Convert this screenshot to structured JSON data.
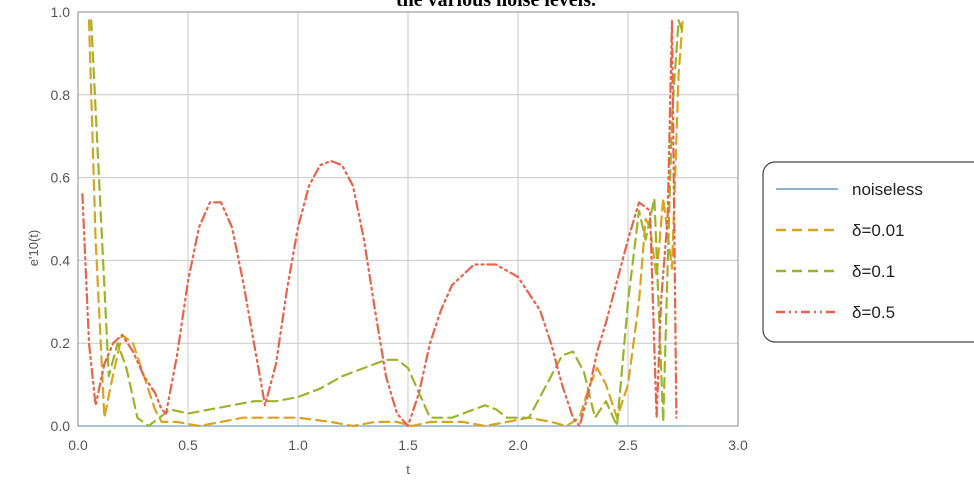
{
  "chart_data": {
    "type": "line",
    "title": "the various noise levels.",
    "xlabel": "t",
    "ylabel": "e'10(t)",
    "xlim": [
      0.0,
      3.0
    ],
    "ylim": [
      0.0,
      1.0
    ],
    "xticks": [
      "0.0",
      "0.5",
      "1.0",
      "1.5",
      "2.0",
      "2.5",
      "3.0"
    ],
    "yticks": [
      "0.0",
      "0.2",
      "0.4",
      "0.6",
      "0.8",
      "1.0"
    ],
    "grid": true,
    "legend_position": "right",
    "series": [
      {
        "name": "noiseless",
        "color": "#8fb0c8",
        "dash": "solid",
        "x": [
          0.0,
          2.75
        ],
        "y": [
          0.0,
          0.0
        ]
      },
      {
        "name": "δ=0.01",
        "color": "#d9a520",
        "dash": "dashed",
        "x": [
          0.05,
          0.08,
          0.12,
          0.15,
          0.2,
          0.25,
          0.3,
          0.35,
          0.38,
          0.45,
          0.55,
          0.65,
          0.75,
          0.85,
          1.0,
          1.15,
          1.25,
          1.35,
          1.45,
          1.52,
          1.6,
          1.75,
          1.85,
          1.95,
          2.05,
          2.15,
          2.22,
          2.28,
          2.32,
          2.36,
          2.4,
          2.45,
          2.5,
          2.55,
          2.58,
          2.6,
          2.63,
          2.66,
          2.7,
          2.73,
          2.75
        ],
        "y": [
          0.98,
          0.45,
          0.02,
          0.1,
          0.22,
          0.2,
          0.12,
          0.04,
          0.01,
          0.01,
          0.0,
          0.01,
          0.02,
          0.02,
          0.02,
          0.01,
          0.0,
          0.01,
          0.01,
          0.0,
          0.01,
          0.01,
          0.0,
          0.01,
          0.02,
          0.01,
          0.0,
          0.02,
          0.09,
          0.14,
          0.1,
          0.02,
          0.1,
          0.3,
          0.5,
          0.48,
          0.36,
          0.55,
          0.38,
          0.85,
          0.99
        ]
      },
      {
        "name": "δ=0.1",
        "color": "#9ab52a",
        "dash": "dashed",
        "x": [
          0.06,
          0.1,
          0.14,
          0.18,
          0.22,
          0.27,
          0.32,
          0.37,
          0.42,
          0.5,
          0.6,
          0.7,
          0.8,
          0.9,
          1.0,
          1.1,
          1.2,
          1.3,
          1.4,
          1.45,
          1.5,
          1.55,
          1.6,
          1.7,
          1.8,
          1.85,
          1.9,
          1.95,
          2.05,
          2.15,
          2.2,
          2.25,
          2.3,
          2.35,
          2.4,
          2.45,
          2.5,
          2.55,
          2.58,
          2.62,
          2.66,
          2.7,
          2.73,
          2.75
        ],
        "y": [
          0.98,
          0.55,
          0.12,
          0.2,
          0.14,
          0.02,
          0.0,
          0.02,
          0.04,
          0.03,
          0.04,
          0.05,
          0.06,
          0.06,
          0.07,
          0.09,
          0.12,
          0.14,
          0.16,
          0.16,
          0.14,
          0.08,
          0.02,
          0.02,
          0.04,
          0.05,
          0.04,
          0.02,
          0.02,
          0.12,
          0.17,
          0.18,
          0.13,
          0.02,
          0.06,
          0.0,
          0.3,
          0.52,
          0.45,
          0.55,
          0.01,
          0.75,
          0.98,
          0.95
        ]
      },
      {
        "name": "δ=0.5",
        "color": "#e8634a",
        "dash": "dashdot",
        "x": [
          0.02,
          0.05,
          0.08,
          0.12,
          0.16,
          0.2,
          0.25,
          0.3,
          0.35,
          0.38,
          0.4,
          0.45,
          0.5,
          0.55,
          0.6,
          0.65,
          0.7,
          0.75,
          0.8,
          0.85,
          0.9,
          0.95,
          1.0,
          1.05,
          1.1,
          1.15,
          1.2,
          1.25,
          1.3,
          1.35,
          1.4,
          1.45,
          1.5,
          1.55,
          1.6,
          1.65,
          1.7,
          1.8,
          1.9,
          2.0,
          2.1,
          2.15,
          2.2,
          2.25,
          2.28,
          2.32,
          2.36,
          2.4,
          2.45,
          2.5,
          2.55,
          2.6,
          2.63,
          2.65,
          2.68,
          2.7,
          2.72
        ],
        "y": [
          0.56,
          0.2,
          0.05,
          0.15,
          0.2,
          0.22,
          0.18,
          0.12,
          0.08,
          0.04,
          0.03,
          0.17,
          0.35,
          0.48,
          0.54,
          0.54,
          0.48,
          0.35,
          0.2,
          0.05,
          0.15,
          0.33,
          0.48,
          0.58,
          0.63,
          0.64,
          0.63,
          0.58,
          0.45,
          0.28,
          0.12,
          0.03,
          0.0,
          0.08,
          0.2,
          0.28,
          0.34,
          0.39,
          0.39,
          0.36,
          0.28,
          0.2,
          0.1,
          0.02,
          0.0,
          0.08,
          0.18,
          0.25,
          0.35,
          0.45,
          0.54,
          0.52,
          0.02,
          0.3,
          0.5,
          0.98,
          0.02
        ]
      }
    ]
  }
}
